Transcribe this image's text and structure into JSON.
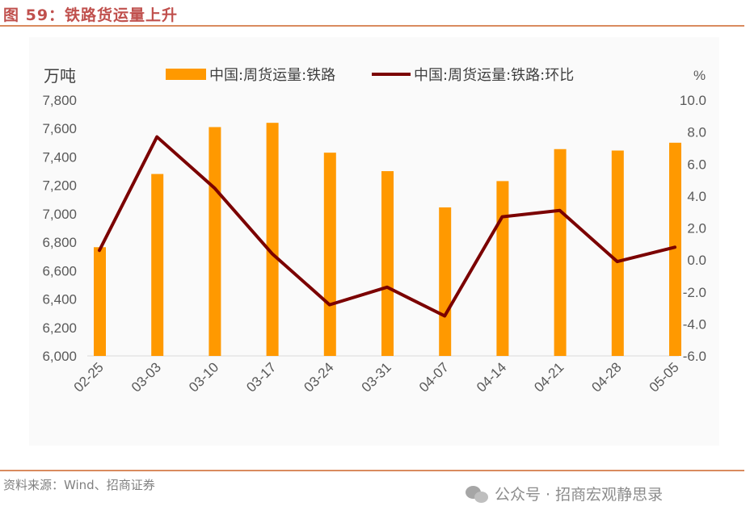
{
  "title": "图 59：铁路货运量上升",
  "source": "资料来源：Wind、招商证券",
  "watermark": "公众号 · 招商宏观静思录",
  "colors": {
    "bar": "#ff9900",
    "line": "#7b0000",
    "accent": "#c0504d"
  },
  "chart_data": {
    "type": "bar+line",
    "categories": [
      "02-25",
      "03-03",
      "03-10",
      "03-17",
      "03-24",
      "03-31",
      "04-07",
      "04-14",
      "04-21",
      "04-28",
      "05-05"
    ],
    "series": [
      {
        "name": "中国:周货运量:铁路",
        "type": "bar",
        "axis": "left",
        "values": [
          6765,
          7280,
          7610,
          7640,
          7430,
          7300,
          7045,
          7230,
          7455,
          7445,
          7500
        ]
      },
      {
        "name": "中国:周货运量:铁路:环比",
        "type": "line",
        "axis": "right",
        "values": [
          0.6,
          7.7,
          4.5,
          0.4,
          -2.8,
          -1.7,
          -3.5,
          2.7,
          3.1,
          -0.1,
          0.8
        ]
      }
    ],
    "left_axis": {
      "unit": "万吨",
      "min": 6000,
      "max": 7800,
      "step": 200,
      "ticks": [
        "6,000",
        "6,200",
        "6,400",
        "6,600",
        "6,800",
        "7,000",
        "7,200",
        "7,400",
        "7,600",
        "7,800"
      ]
    },
    "right_axis": {
      "unit": "%",
      "min": -6,
      "max": 10,
      "step": 2,
      "ticks": [
        "-6.0",
        "-4.0",
        "-2.0",
        "0.0",
        "2.0",
        "4.0",
        "6.0",
        "8.0",
        "10.0"
      ]
    },
    "legend_position": "top",
    "grid": false
  }
}
